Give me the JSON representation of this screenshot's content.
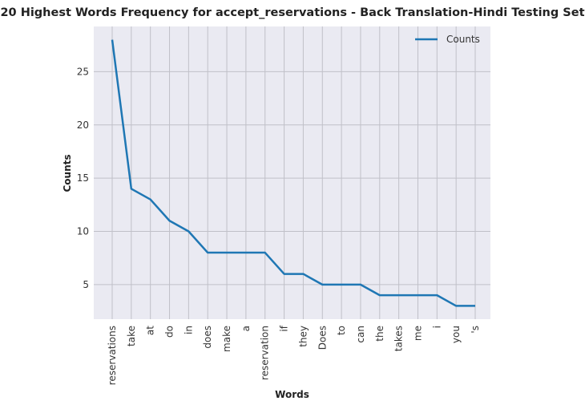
{
  "chart_data": {
    "type": "line",
    "title": "20 Highest Words Frequency for accept_reservations - Back Translation-Hindi Testing Set",
    "xlabel": "Words",
    "ylabel": "Counts",
    "categories": [
      "reservations",
      "take",
      "at",
      "do",
      "in",
      "does",
      "make",
      "a",
      "reservation",
      "if",
      "they",
      "Does",
      "to",
      "can",
      "the",
      "takes",
      "me",
      "i",
      "you",
      "'s"
    ],
    "series": [
      {
        "name": "Counts",
        "values": [
          28,
          14,
          13,
          11,
          10,
          8,
          8,
          8,
          8,
          6,
          6,
          5,
          5,
          5,
          4,
          4,
          4,
          4,
          3,
          3
        ]
      }
    ],
    "ylim": [
      1.75,
      29.25
    ],
    "yticks": [
      5,
      10,
      15,
      20,
      25
    ],
    "grid": true,
    "legend_position": "top-right",
    "colors": {
      "line": "#1f77b4",
      "plot_bg": "#eaeaf2",
      "grid": "#c0c0c8"
    }
  }
}
